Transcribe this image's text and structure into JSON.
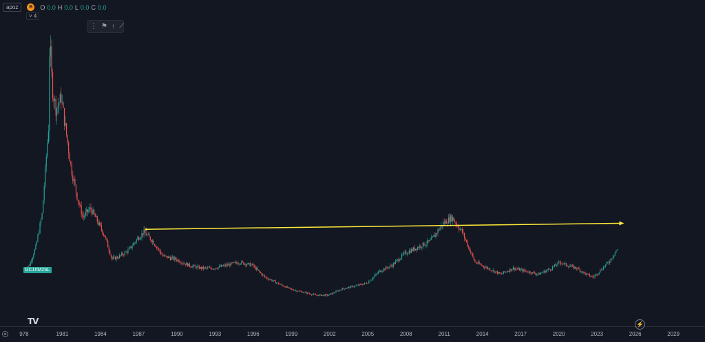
{
  "legend": {
    "symbol": "apoz",
    "currency_badge": "B",
    "ohlc": [
      {
        "key": "O",
        "value": "0.0"
      },
      {
        "key": "H",
        "value": "0.0"
      },
      {
        "key": "L",
        "value": "0.0"
      },
      {
        "key": "C",
        "value": "0.0"
      }
    ]
  },
  "indicator_toggle": "˅ 4",
  "toolbar_icons": [
    "flag-pin-icon",
    "arrow-up-pin-icon",
    "chart-trend-icon"
  ],
  "series_label": "GC1!/M2SL",
  "colors": {
    "background": "#131722",
    "up": "#26a69a",
    "down": "#ef5350",
    "trendline": "#ffeb3b",
    "axis_text": "#b2b5be",
    "series_tag": "#26a69a"
  },
  "chart_data": {
    "type": "candlestick",
    "title": "",
    "xlabel": "",
    "ylabel": "",
    "x_ticks": [
      "978",
      "1981",
      "1984",
      "1987",
      "1990",
      "1993",
      "1996",
      "1999",
      "2002",
      "2005",
      "2008",
      "2011",
      "2014",
      "2017",
      "2020",
      "2023",
      "2026",
      "2029"
    ],
    "x_range": [
      1977.95,
      2030.4
    ],
    "y_range": [
      0,
      100
    ],
    "grid": false,
    "price_path": [
      [
        1978.0,
        14
      ],
      [
        1978.5,
        16
      ],
      [
        1979.0,
        22
      ],
      [
        1979.5,
        33
      ],
      [
        1980.0,
        62
      ],
      [
        1980.1,
        92
      ],
      [
        1980.3,
        75
      ],
      [
        1980.6,
        68
      ],
      [
        1981.0,
        72
      ],
      [
        1981.4,
        60
      ],
      [
        1981.8,
        48
      ],
      [
        1982.3,
        38
      ],
      [
        1982.7,
        32
      ],
      [
        1983.3,
        35
      ],
      [
        1983.8,
        31
      ],
      [
        1984.4,
        26
      ],
      [
        1985.0,
        18
      ],
      [
        1985.6,
        19
      ],
      [
        1986.3,
        21
      ],
      [
        1987.0,
        25
      ],
      [
        1987.5,
        27
      ],
      [
        1988.2,
        24
      ],
      [
        1989.0,
        19
      ],
      [
        1990.0,
        18
      ],
      [
        1991.0,
        16
      ],
      [
        1992.0,
        15
      ],
      [
        1993.0,
        15
      ],
      [
        1994.0,
        16
      ],
      [
        1995.0,
        17
      ],
      [
        1996.0,
        16
      ],
      [
        1997.0,
        12
      ],
      [
        1998.0,
        10
      ],
      [
        1999.0,
        8
      ],
      [
        2000.0,
        7
      ],
      [
        2001.0,
        6
      ],
      [
        2002.0,
        6
      ],
      [
        2003.0,
        8
      ],
      [
        2004.0,
        9
      ],
      [
        2005.0,
        10
      ],
      [
        2006.0,
        14
      ],
      [
        2007.0,
        16
      ],
      [
        2008.0,
        20
      ],
      [
        2009.0,
        22
      ],
      [
        2010.0,
        24
      ],
      [
        2011.0,
        30
      ],
      [
        2011.7,
        32
      ],
      [
        2012.5,
        27
      ],
      [
        2013.0,
        22
      ],
      [
        2013.5,
        17
      ],
      [
        2014.5,
        15
      ],
      [
        2015.5,
        13
      ],
      [
        2016.5,
        15
      ],
      [
        2017.5,
        14
      ],
      [
        2018.5,
        13
      ],
      [
        2019.5,
        15
      ],
      [
        2020.2,
        17
      ],
      [
        2020.7,
        16
      ],
      [
        2021.5,
        15
      ],
      [
        2022.2,
        13
      ],
      [
        2022.8,
        12
      ],
      [
        2023.5,
        15
      ],
      [
        2024.0,
        17
      ],
      [
        2024.6,
        21
      ]
    ],
    "trendline": {
      "from": [
        1987.6,
        28
      ],
      "to": [
        2024.8,
        30
      ],
      "style": "ray-with-arrow"
    }
  }
}
